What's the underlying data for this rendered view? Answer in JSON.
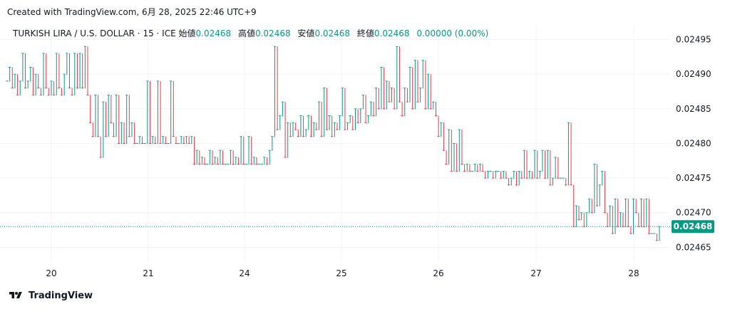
{
  "header": {
    "created_text": "Created with TradingView.com, 6月 28, 2025 22:46 UTC+9"
  },
  "legend": {
    "symbol": "TURKISH LIRA / U.S. DOLLAR · 15 · ICE",
    "open_label": "始値",
    "open_value": "0.02468",
    "high_label": "高値",
    "high_value": "0.02468",
    "low_label": "安値",
    "low_value": "0.02468",
    "close_label": "終値",
    "close_value": "0.02468",
    "change": "0.00000 (0.00%)"
  },
  "brand": {
    "name": "TradingView",
    "logo_icon": "tradingview-logo-icon"
  },
  "colors": {
    "up": "#089981",
    "down": "#f23645",
    "last_price_bg": "#089981",
    "grid": "#f0f3fa",
    "axis_text": "#131722"
  },
  "chart_data": {
    "type": "candlestick",
    "title": "TURKISH LIRA / U.S. DOLLAR · 15 · ICE",
    "x_ticks": [
      "20",
      "21",
      "24",
      "25",
      "26",
      "27",
      "28"
    ],
    "y_ticks": [
      "0.02495",
      "0.02490",
      "0.02485",
      "0.02480",
      "0.02475",
      "0.02470",
      "0.02465"
    ],
    "ylim": [
      0.024635,
      0.02497
    ],
    "last_price": "0.02468",
    "grid": true,
    "price_scale_position": "right",
    "series": [
      {
        "day": "19",
        "points": [
          0.02489,
          0.02491,
          0.02488,
          0.0249,
          0.02487,
          0.02489,
          0.02493,
          0.02488,
          0.02489,
          0.02491,
          0.02487,
          0.0249,
          0.02488,
          0.02487,
          0.02493,
          0.02488,
          0.02487,
          0.02489,
          0.02487,
          0.02493,
          0.02488,
          0.02487,
          0.0249,
          0.02493,
          0.02488,
          0.02487
        ]
      },
      {
        "day": "20",
        "points": [
          0.02493,
          0.02488,
          0.02493,
          0.02488,
          0.02494,
          0.02487,
          0.02483,
          0.02481,
          0.02487,
          0.02481,
          0.02478,
          0.02486,
          0.02481,
          0.02487,
          0.02483,
          0.02481,
          0.02487,
          0.0248,
          0.02483,
          0.0248,
          0.02487,
          0.02481,
          0.02483,
          0.0248
        ]
      },
      {
        "day": "20b",
        "points": [
          0.0248,
          0.02481,
          0.0248,
          0.0248,
          0.02489,
          0.0248,
          0.02481,
          0.0248,
          0.02489,
          0.0248,
          0.02481,
          0.0248,
          0.0248,
          0.02489,
          0.02481,
          0.0248,
          0.0248,
          0.02481,
          0.0248,
          0.02481,
          0.0248,
          0.02481
        ]
      },
      {
        "day": "21",
        "points": [
          0.02477,
          0.02479,
          0.02477,
          0.02478,
          0.02477,
          0.02477,
          0.02479,
          0.02477,
          0.02478,
          0.02477,
          0.02479,
          0.02477,
          0.02477,
          0.02477,
          0.02479,
          0.02477,
          0.02478,
          0.02477,
          0.02481,
          0.02477,
          0.02477,
          0.02481,
          0.02477,
          0.02478,
          0.02477,
          0.02477,
          0.02477,
          0.02478,
          0.02477
        ]
      },
      {
        "day": "24",
        "points": [
          0.02479,
          0.02481,
          0.02494,
          0.02482,
          0.02484,
          0.02486,
          0.02478,
          0.02483,
          0.02481,
          0.02483,
          0.02482,
          0.02481,
          0.02484,
          0.02481,
          0.02482,
          0.02484,
          0.02481,
          0.02483,
          0.02482,
          0.02486,
          0.02481,
          0.02488,
          0.02482,
          0.02484,
          0.02481,
          0.02483,
          0.02482,
          0.02484,
          0.02488,
          0.02482,
          0.02483,
          0.02484,
          0.02482,
          0.02485,
          0.02483,
          0.02485,
          0.02487,
          0.02483
        ]
      },
      {
        "day": "25",
        "points": [
          0.02484,
          0.02486,
          0.02484,
          0.02488,
          0.02485,
          0.02491,
          0.02485,
          0.02489,
          0.02486,
          0.02488,
          0.02485,
          0.02494,
          0.02486,
          0.02484,
          0.02488,
          0.02486,
          0.02491,
          0.02485,
          0.02492,
          0.02486,
          0.02488,
          0.02492,
          0.02485,
          0.0249,
          0.02485,
          0.02486,
          0.02484,
          0.02481,
          0.02483,
          0.02479,
          0.02477,
          0.02482
        ]
      },
      {
        "day": "26",
        "points": [
          0.02476,
          0.0248,
          0.02476,
          0.02482,
          0.02477,
          0.02476,
          0.02477,
          0.02476,
          0.02476,
          0.02477,
          0.02476,
          0.02477,
          0.02476,
          0.02475,
          0.02476,
          0.02476,
          0.02475,
          0.02476,
          0.02476,
          0.02475,
          0.02476,
          0.02475,
          0.02474,
          0.02475,
          0.02476,
          0.02474,
          0.02476,
          0.02475,
          0.02479,
          0.02475,
          0.02476,
          0.02475,
          0.02479,
          0.02475,
          0.02476,
          0.02479,
          0.02475,
          0.02479,
          0.02474,
          0.02475,
          0.02478,
          0.02475,
          0.02475,
          0.02475,
          0.02474
        ]
      },
      {
        "day": "27",
        "points": [
          0.02483,
          0.02474,
          0.02468,
          0.02471,
          0.02469,
          0.0247,
          0.02468,
          0.0247,
          0.02472,
          0.0247,
          0.02477,
          0.02471,
          0.02474,
          0.02476,
          0.0247,
          0.02468,
          0.02471,
          0.02467,
          0.02472,
          0.02468,
          0.0247,
          0.02468,
          0.02472,
          0.02468,
          0.02467,
          0.02472,
          0.0247,
          0.02468,
          0.02472,
          0.02468,
          0.02472,
          0.02467,
          0.02467,
          0.02467,
          0.02466,
          0.02468
        ]
      }
    ]
  }
}
